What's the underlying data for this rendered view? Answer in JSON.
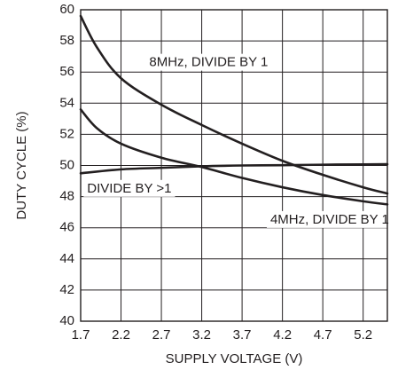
{
  "chart_data": {
    "type": "line",
    "xlabel": "SUPPLY VOLTAGE (V)",
    "ylabel": "DUTY CYCLE (%)",
    "xlim": [
      1.7,
      5.5
    ],
    "ylim": [
      40,
      60
    ],
    "x_ticks": [
      1.7,
      2.2,
      2.7,
      3.2,
      3.7,
      4.2,
      4.7,
      5.2
    ],
    "x_tick_labels": [
      "1.7",
      "2.2",
      "2.7",
      "3.2",
      "3.7",
      "4.2",
      "4.7",
      "5.2"
    ],
    "y_ticks": [
      40,
      42,
      44,
      46,
      48,
      50,
      52,
      54,
      56,
      58,
      60
    ],
    "y_tick_labels": [
      "40",
      "42",
      "44",
      "46",
      "48",
      "50",
      "52",
      "54",
      "56",
      "58",
      "60"
    ],
    "x_grid": [
      1.7,
      2.2,
      2.7,
      3.2,
      3.7,
      4.2,
      4.7,
      5.2,
      5.5
    ],
    "grid": true,
    "series": [
      {
        "name": "8MHz, DIVIDE BY 1",
        "x": [
          1.7,
          1.9,
          2.2,
          2.7,
          3.2,
          3.7,
          4.2,
          4.7,
          5.2,
          5.5
        ],
        "y": [
          59.6,
          57.6,
          55.6,
          53.9,
          52.6,
          51.4,
          50.3,
          49.4,
          48.6,
          48.2
        ]
      },
      {
        "name": "4MHz, DIVIDE BY 1",
        "x": [
          1.7,
          1.9,
          2.2,
          2.7,
          3.2,
          3.7,
          4.2,
          4.7,
          5.2,
          5.5
        ],
        "y": [
          53.6,
          52.4,
          51.4,
          50.5,
          49.9,
          49.2,
          48.6,
          48.1,
          47.7,
          47.5
        ]
      },
      {
        "name": "DIVIDE BY >1",
        "x": [
          1.7,
          2.2,
          2.7,
          3.2,
          3.7,
          4.2,
          4.7,
          5.2,
          5.5
        ],
        "y": [
          49.5,
          49.75,
          49.85,
          49.95,
          50.0,
          50.02,
          50.05,
          50.07,
          50.08
        ]
      }
    ],
    "annotations": [
      {
        "text": "8MHz, DIVIDE BY 1",
        "x": 2.55,
        "y": 56.6,
        "anchor": "start"
      },
      {
        "text": "DIVIDE BY >1",
        "x": 1.78,
        "y": 48.5,
        "anchor": "start"
      },
      {
        "text": "4MHz, DIVIDE BY 1",
        "x": 4.05,
        "y": 46.5,
        "anchor": "start"
      }
    ]
  }
}
